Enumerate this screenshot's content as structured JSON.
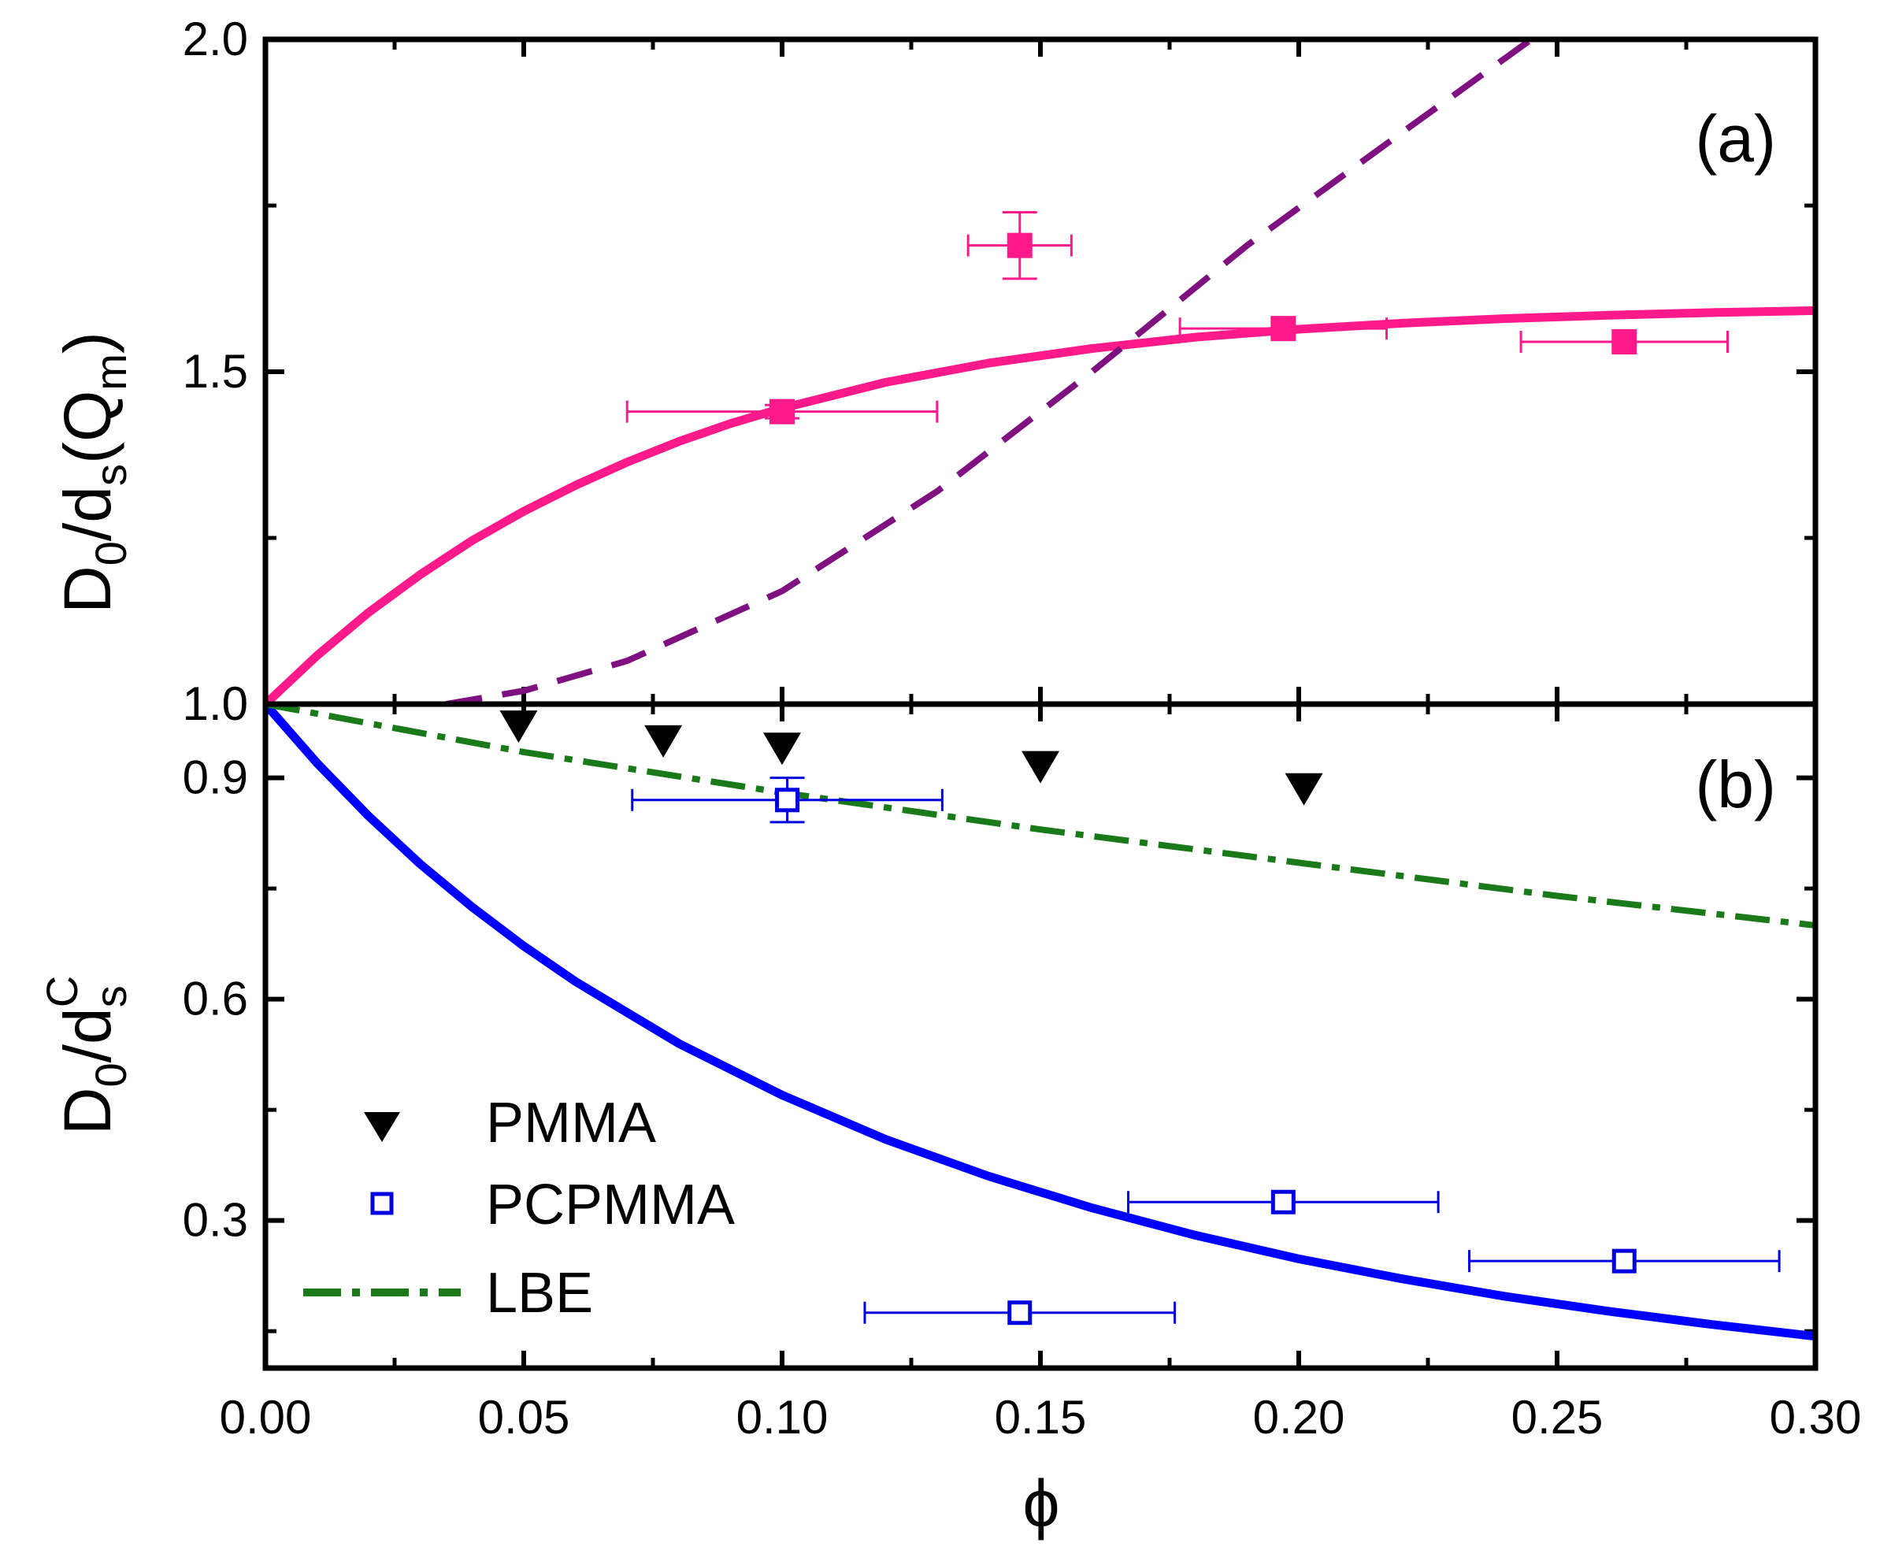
{
  "chart_data": [
    {
      "panel": "(a)",
      "type": "scatter",
      "ylabel": {
        "base": "D",
        "sub1": "0",
        "mid": "/d",
        "sub2": "s",
        "paren_open": "(Q",
        "sub3": "m",
        "paren_close": ")"
      },
      "xlim": [
        0,
        0.3
      ],
      "ylim": [
        1.0,
        2.0
      ],
      "yticks": [
        1.0,
        1.5,
        2.0
      ],
      "ytick_labels": [
        "1.0",
        "1.5",
        "2.0"
      ],
      "series": [
        {
          "name": "PCPMMA",
          "marker": "filled-square",
          "color": "#ff1a8c",
          "points": [
            {
              "x": 0.1,
              "y": 1.44,
              "xerr": 0.03,
              "yerr": 0.01
            },
            {
              "x": 0.146,
              "y": 1.69,
              "xerr": 0.01,
              "yerr": 0.05
            },
            {
              "x": 0.197,
              "y": 1.565,
              "xerr": 0.02,
              "yerr": 0.0
            },
            {
              "x": 0.263,
              "y": 1.545,
              "xerr": 0.02,
              "yerr": 0.0
            }
          ]
        }
      ],
      "curves": [
        {
          "name": "fit-solid",
          "style": "solid",
          "color": "#ff1a8c",
          "x": [
            0,
            0.01,
            0.02,
            0.03,
            0.04,
            0.05,
            0.06,
            0.07,
            0.08,
            0.09,
            0.1,
            0.12,
            0.14,
            0.16,
            0.18,
            0.2,
            0.22,
            0.24,
            0.26,
            0.28,
            0.3
          ],
          "y": [
            1.0,
            1.073,
            1.138,
            1.195,
            1.246,
            1.29,
            1.329,
            1.364,
            1.395,
            1.422,
            1.445,
            1.484,
            1.513,
            1.535,
            1.552,
            1.564,
            1.573,
            1.58,
            1.585,
            1.589,
            1.592
          ]
        },
        {
          "name": "fit-dashed",
          "style": "dashed",
          "color": "#7f107f",
          "x": [
            0.035,
            0.05,
            0.07,
            0.1,
            0.13,
            0.16,
            0.19,
            0.22,
            0.245
          ],
          "y": [
            1.0,
            1.02,
            1.065,
            1.17,
            1.32,
            1.5,
            1.69,
            1.86,
            2.0
          ]
        }
      ]
    },
    {
      "panel": "(b)",
      "type": "scatter",
      "xlabel": "ϕ",
      "ylabel": {
        "base": "D",
        "sub1": "0",
        "mid": "/d",
        "sub2": "s",
        "sup": "C"
      },
      "xlim": [
        0,
        0.3
      ],
      "ylim": [
        0.1,
        1.0
      ],
      "xticks": [
        0.0,
        0.05,
        0.1,
        0.15,
        0.2,
        0.25,
        0.3
      ],
      "xtick_labels": [
        "0.00",
        "0.05",
        "0.10",
        "0.15",
        "0.20",
        "0.25",
        "0.30"
      ],
      "yticks": [
        0.3,
        0.6,
        0.9,
        1.0
      ],
      "ytick_labels": [
        "0.3",
        "0.6",
        "0.9",
        "1.0"
      ],
      "series": [
        {
          "name": "PMMA",
          "marker": "filled-triangle-down",
          "color": "#000000",
          "points": [
            {
              "x": 0.049,
              "y": 0.97
            },
            {
              "x": 0.077,
              "y": 0.95
            },
            {
              "x": 0.1,
              "y": 0.94
            },
            {
              "x": 0.15,
              "y": 0.915
            },
            {
              "x": 0.201,
              "y": 0.885
            }
          ]
        },
        {
          "name": "PCPMMA",
          "marker": "open-square",
          "color": "#0000e0",
          "points": [
            {
              "x": 0.101,
              "y": 0.87,
              "xerr": 0.03,
              "yerr": 0.03
            },
            {
              "x": 0.146,
              "y": 0.175,
              "xerr": 0.03,
              "yerr": 0.0
            },
            {
              "x": 0.197,
              "y": 0.325,
              "xerr": 0.03,
              "yerr": 0.0
            },
            {
              "x": 0.263,
              "y": 0.245,
              "xerr": 0.03,
              "yerr": 0.0
            }
          ]
        }
      ],
      "curves": [
        {
          "name": "theory-solid",
          "style": "solid",
          "color": "#0000ff",
          "x": [
            0,
            0.01,
            0.02,
            0.03,
            0.04,
            0.05,
            0.06,
            0.08,
            0.1,
            0.12,
            0.14,
            0.16,
            0.18,
            0.2,
            0.22,
            0.24,
            0.26,
            0.28,
            0.3
          ],
          "y": [
            1.0,
            0.92,
            0.848,
            0.783,
            0.725,
            0.672,
            0.624,
            0.54,
            0.47,
            0.41,
            0.36,
            0.317,
            0.28,
            0.248,
            0.221,
            0.197,
            0.177,
            0.159,
            0.143
          ]
        },
        {
          "name": "LBE",
          "style": "dash-dot",
          "color": "#1a7a1a",
          "x": [
            0,
            0.05,
            0.1,
            0.15,
            0.2,
            0.25,
            0.3
          ],
          "y": [
            1.0,
            0.935,
            0.88,
            0.83,
            0.785,
            0.74,
            0.7
          ]
        }
      ],
      "legend": {
        "placement": "bottom-left",
        "entries": [
          {
            "label": "PMMA",
            "marker": "filled-triangle-down",
            "color": "#000000"
          },
          {
            "label": "PCPMMA",
            "marker": "open-square",
            "color": "#0000e0"
          },
          {
            "label": "LBE",
            "marker": "dash-dot-line",
            "color": "#1a7a1a"
          }
        ]
      }
    }
  ]
}
